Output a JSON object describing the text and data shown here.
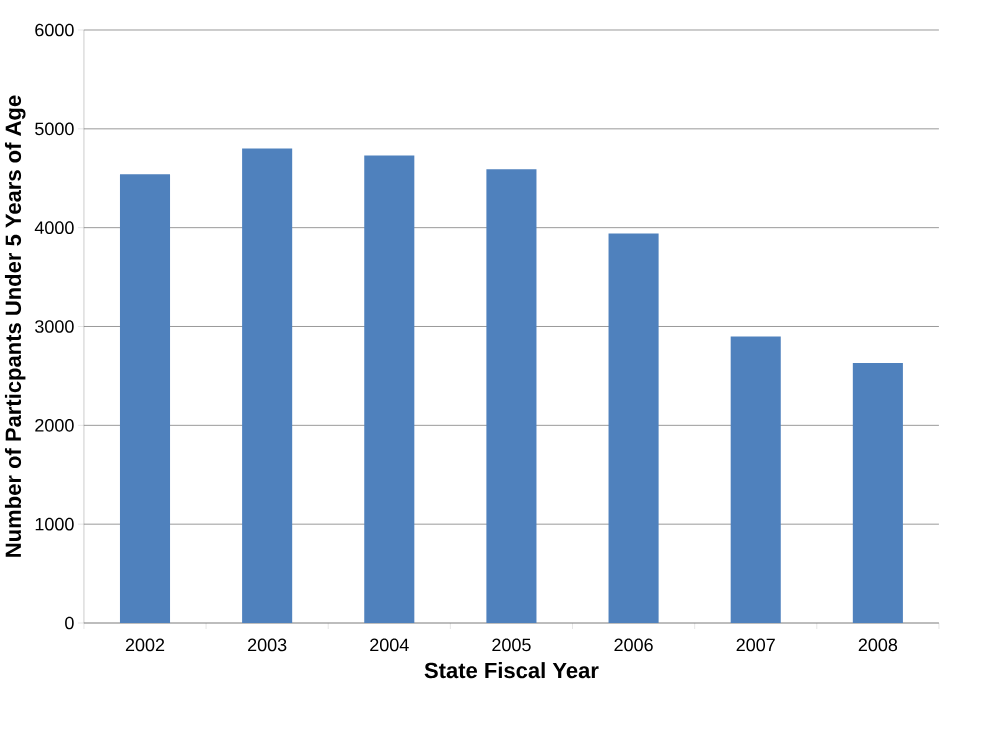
{
  "chart_data": {
    "type": "bar",
    "xlabel": "State Fiscal Year",
    "ylabel": "Number of Particpants Under 5 Years of Age",
    "categories": [
      "2002",
      "2003",
      "2004",
      "2005",
      "2006",
      "2007",
      "2008"
    ],
    "values": [
      4540,
      4800,
      4730,
      4590,
      3940,
      2900,
      2630
    ],
    "color": "#4f81bd",
    "ylim": [
      0,
      6000
    ],
    "yticks": [
      0,
      1000,
      2000,
      3000,
      4000,
      5000,
      6000
    ],
    "grid": "y"
  }
}
